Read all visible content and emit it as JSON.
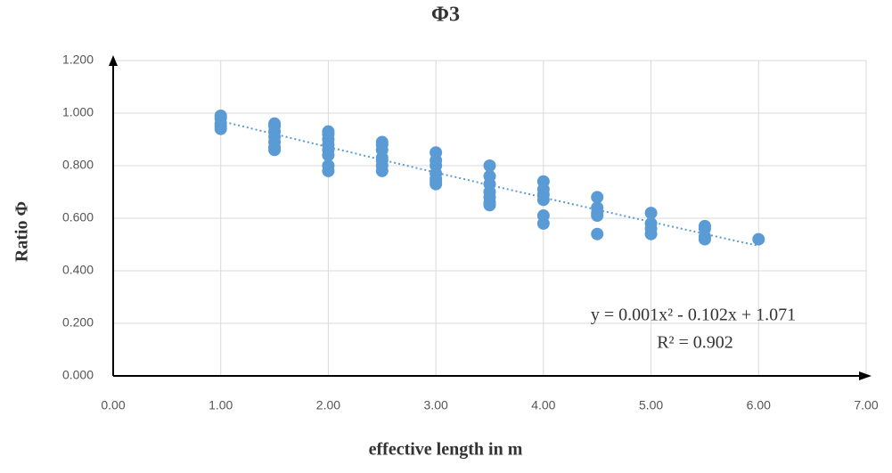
{
  "chart_data": {
    "type": "scatter",
    "title": "Φ3",
    "x_label": "effective length in m",
    "y_label": "Ratio Φ",
    "x": [
      1,
      1,
      1,
      1,
      1,
      1.5,
      1.5,
      1.5,
      1.5,
      1.5,
      1.5,
      1.5,
      2,
      2,
      2,
      2,
      2,
      2,
      2,
      2,
      2.5,
      2.5,
      2.5,
      2.5,
      2.5,
      2.5,
      2.5,
      3,
      3,
      3,
      3,
      3,
      3,
      3,
      3.5,
      3.5,
      3.5,
      3.5,
      3.5,
      3.5,
      3.5,
      4,
      4,
      4,
      4,
      4,
      4,
      4.5,
      4.5,
      4.5,
      4.5,
      4.5,
      5,
      5,
      5,
      5,
      5.5,
      5.5,
      5.5,
      5.5,
      6
    ],
    "values": [
      0.99,
      0.98,
      0.96,
      0.95,
      0.94,
      0.96,
      0.95,
      0.93,
      0.91,
      0.89,
      0.87,
      0.86,
      0.93,
      0.92,
      0.9,
      0.88,
      0.86,
      0.84,
      0.8,
      0.78,
      0.89,
      0.88,
      0.86,
      0.83,
      0.82,
      0.8,
      0.78,
      0.85,
      0.82,
      0.8,
      0.77,
      0.75,
      0.74,
      0.73,
      0.8,
      0.76,
      0.73,
      0.7,
      0.68,
      0.66,
      0.65,
      0.74,
      0.71,
      0.69,
      0.67,
      0.61,
      0.58,
      0.68,
      0.64,
      0.62,
      0.61,
      0.54,
      0.62,
      0.58,
      0.56,
      0.54,
      0.57,
      0.56,
      0.53,
      0.52,
      0.52
    ],
    "color": "#5b9bd5",
    "xlim": [
      0,
      7
    ],
    "xticks": [
      {
        "value": 0,
        "label": "0.00"
      },
      {
        "value": 1,
        "label": "1.00"
      },
      {
        "value": 2,
        "label": "2.00"
      },
      {
        "value": 3,
        "label": "3.00"
      },
      {
        "value": 4,
        "label": "4.00"
      },
      {
        "value": 5,
        "label": "5.00"
      },
      {
        "value": 6,
        "label": "6.00"
      },
      {
        "value": 7,
        "label": "7.00"
      }
    ],
    "ylim": [
      0,
      1.2
    ],
    "yticks": [
      {
        "value": 0,
        "label": "0.000"
      },
      {
        "value": 0.2,
        "label": "0.200"
      },
      {
        "value": 0.4,
        "label": "0.400"
      },
      {
        "value": 0.6,
        "label": "0.600"
      },
      {
        "value": 0.8,
        "label": "0.800"
      },
      {
        "value": 1,
        "label": "1.000"
      },
      {
        "value": 1.2,
        "label": "1.200"
      }
    ],
    "grid": true,
    "annotations": [
      "y = 0.001x² - 0.102x + 1.071",
      "R² = 0.902"
    ]
  }
}
